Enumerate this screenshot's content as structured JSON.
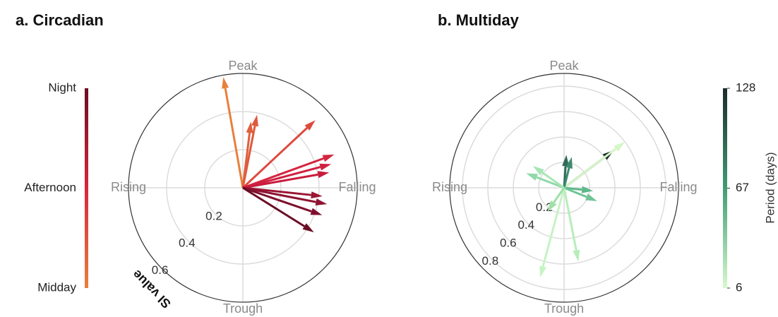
{
  "chart_data": [
    {
      "type": "polar",
      "title": "a. Circadian",
      "r_label": "SI value",
      "rlim": [
        0,
        0.6
      ],
      "rticks": [
        0.2,
        0.4,
        0.6
      ],
      "thetaticks": [
        {
          "value": 0,
          "label": "Peak"
        },
        {
          "value": 90,
          "label": "Falling"
        },
        {
          "value": 180,
          "label": "Trough"
        },
        {
          "value": 270,
          "label": "Rising"
        }
      ],
      "series": [
        {
          "theta": [
            350,
            11,
            7,
            47,
            70,
            75,
            80,
            96,
            101,
            109,
            122
          ],
          "values": [
            0.59,
            0.39,
            0.35,
            0.52,
            0.51,
            0.48,
            0.46,
            0.42,
            0.45,
            0.44,
            0.44
          ],
          "colors": [
            "#e8803c",
            "#df5a3c",
            "#e0603e",
            "#dd4a3e",
            "#d4253f",
            "#d02040",
            "#c81c3c",
            "#9b1633",
            "#8e1331",
            "#7e0f2c",
            "#6b0d24"
          ]
        }
      ],
      "colorbar": {
        "labels": [
          "Night",
          "Afternoon",
          "Midday"
        ],
        "colors": [
          "#6b0d24",
          "#d9263b",
          "#e8803c"
        ]
      }
    },
    {
      "type": "polar",
      "title": "b. Multiday",
      "rlim": [
        0,
        0.9
      ],
      "rticks": [
        0.2,
        0.4,
        0.6,
        0.8
      ],
      "thetaticks": [
        {
          "value": 0,
          "label": "Peak"
        },
        {
          "value": 90,
          "label": "Falling"
        },
        {
          "value": 180,
          "label": "Trough"
        },
        {
          "value": 270,
          "label": "Rising"
        }
      ],
      "series": [
        {
          "theta": [
            53,
            53,
            4,
            14,
            291,
            305,
            96,
            112,
            169,
            195,
            215
          ],
          "values": [
            0.49,
            0.6,
            0.26,
            0.25,
            0.32,
            0.3,
            0.23,
            0.28,
            0.59,
            0.73,
            0.23
          ],
          "colors": [
            "#1b2b2a",
            "#d6f5c8",
            "#2f6b5a",
            "#3f8a6f",
            "#8fd9a8",
            "#a8e6b5",
            "#5fb88a",
            "#70c495",
            "#b5eeb9",
            "#c6f3c5",
            "#9ee0a8"
          ]
        }
      ],
      "colorbar": {
        "label": "Period (days)",
        "lim": [
          6,
          128
        ],
        "ticks": [
          6,
          67,
          128
        ],
        "colors": [
          "#1b2b2a",
          "#3f9d74",
          "#d6f9cc"
        ]
      }
    }
  ]
}
